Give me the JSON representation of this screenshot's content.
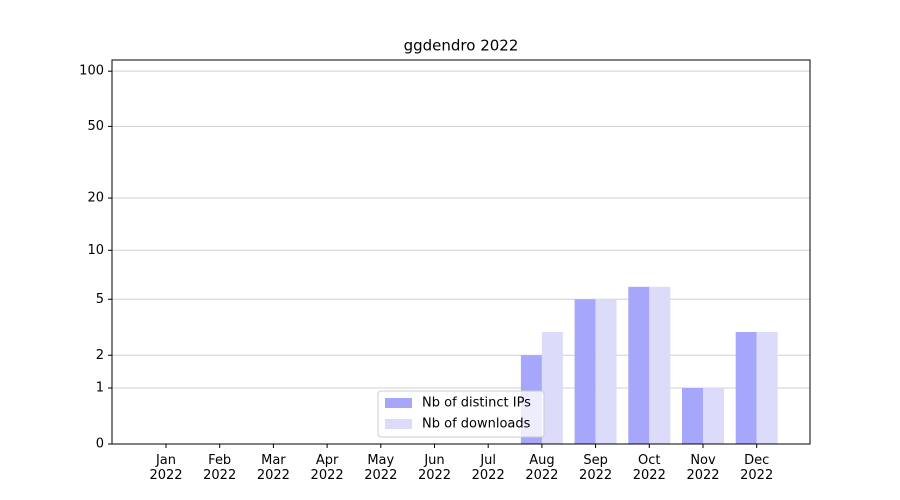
{
  "chart_data": {
    "type": "bar",
    "title": "ggdendro 2022",
    "scale": "log1p",
    "grid": true,
    "legend": "lower center",
    "categories": [
      "Jan\n2022",
      "Feb\n2022",
      "Mar\n2022",
      "Apr\n2022",
      "May\n2022",
      "Jun\n2022",
      "Jul\n2022",
      "Aug\n2022",
      "Sep\n2022",
      "Oct\n2022",
      "Nov\n2022",
      "Dec\n2022"
    ],
    "series": [
      {
        "name": "Nb of distinct IPs",
        "color": "#a6a6fb",
        "values": [
          0,
          0,
          0,
          0,
          0,
          0,
          0,
          2,
          5,
          6,
          1,
          3
        ]
      },
      {
        "name": "Nb of downloads",
        "color": "#dcdcfa",
        "values": [
          0,
          0,
          0,
          0,
          0,
          0,
          0,
          3,
          5,
          6,
          1,
          3
        ]
      }
    ],
    "ylim": [
      0,
      115
    ],
    "yticks": [
      0,
      1,
      2,
      5,
      10,
      20,
      50,
      100
    ]
  }
}
